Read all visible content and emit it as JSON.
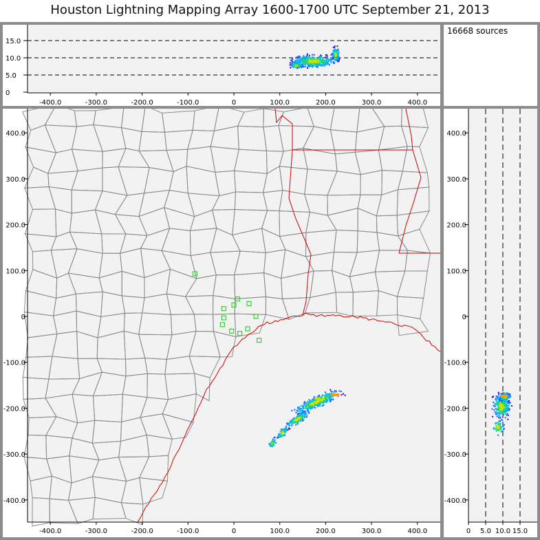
{
  "header": {
    "title": "Houston Lightning Mapping Array   1600-1700 UTC  September 21, 2013"
  },
  "stats": {
    "sources": "16668 sources"
  },
  "axes": {
    "x_ticks": [
      "-400.0",
      "-300.0",
      "-200.0",
      "-100.0",
      "0",
      "100.0",
      "200.0",
      "300.0",
      "400.0"
    ],
    "y_ticks": [
      "400.0",
      "300.0",
      "200.0",
      "100.0",
      "0",
      "-100.0",
      "-200.0",
      "-300.0",
      "-400.0"
    ],
    "alt_ticks_top": [
      "15.0",
      "10.0",
      "5.0",
      "0"
    ],
    "alt_ticks_side": [
      "0",
      "5.0",
      "10.0",
      "15.0"
    ]
  },
  "colors": {
    "panel_bg": "#f2f2f2",
    "frame": "#8c8c8c",
    "county_line": "#8a8a8a",
    "coast_state": "#d00000",
    "station": "#35d035",
    "density": [
      "#2a00c8",
      "#1a55ff",
      "#00b0ff",
      "#1ed37f",
      "#c8e000",
      "#ff9a00"
    ]
  },
  "map": {
    "stations": [
      {
        "x": -85,
        "y": 93
      },
      {
        "x": -22,
        "y": 17
      },
      {
        "x": 0,
        "y": 25
      },
      {
        "x": 8,
        "y": 38
      },
      {
        "x": 33,
        "y": 28
      },
      {
        "x": 48,
        "y": 0
      },
      {
        "x": -22,
        "y": -3
      },
      {
        "x": -25,
        "y": -18
      },
      {
        "x": -5,
        "y": -32
      },
      {
        "x": 13,
        "y": -37
      },
      {
        "x": 30,
        "y": -27
      },
      {
        "x": 55,
        "y": -52
      }
    ]
  }
}
